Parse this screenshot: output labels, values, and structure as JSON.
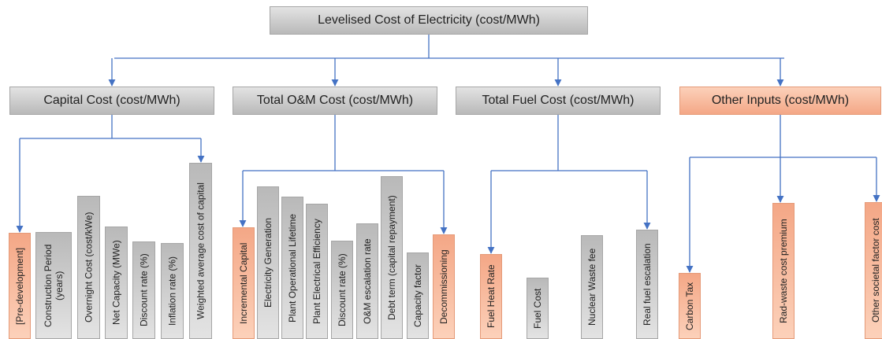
{
  "title": "Levelised Cost of Electricity (cost/MWh)",
  "groups": [
    {
      "label": "Capital Cost (cost/MWh)",
      "items": [
        "[Pre-development]",
        "Construction Period (years)",
        "Overnight Cost (cost/kWe)",
        "Net Capacity (MWe)",
        "Discount rate (%)",
        "Inflation rate (%)",
        "Weighted average cost of capital"
      ]
    },
    {
      "label": "Total O&M Cost (cost/MWh)",
      "items": [
        "Incremental Capital",
        "Electricity Generation",
        "Plant Operational Lifetime",
        "Plant Electrical Efficiency",
        "Discount rate (%)",
        "O&M escalation rate",
        "Debt term (capital repayment)",
        "Capacity factor",
        "Decommissioning"
      ]
    },
    {
      "label": "Total Fuel Cost (cost/MWh)",
      "items": [
        "Fuel Heat Rate",
        "Fuel Cost",
        "Nuclear Waste fee",
        "Real fuel escalation"
      ]
    },
    {
      "label": "Other Inputs (cost/MWh)",
      "items": [
        "Carbon Tax",
        "Rad-waste cost premium",
        "Other societal factor cost"
      ]
    }
  ]
}
